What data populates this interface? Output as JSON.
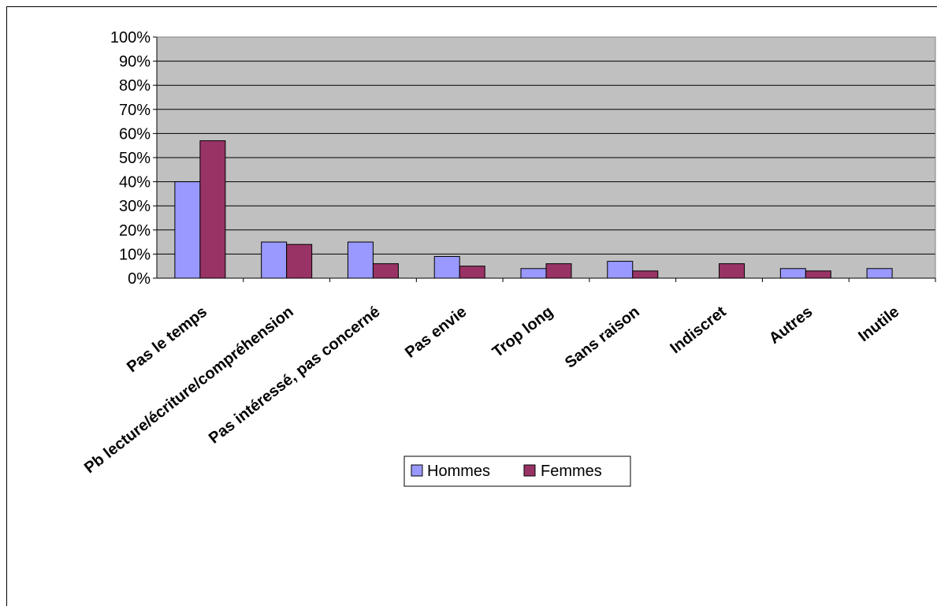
{
  "chart_data": {
    "type": "bar",
    "categories": [
      "Pas le temps",
      "Pb lecture/écriture/compréhension",
      "Pas intéressé, pas concerné",
      "Pas envie",
      "Trop long",
      "Sans raison",
      "Indiscret",
      "Autres",
      "Inutile"
    ],
    "series": [
      {
        "name": "Hommes",
        "values": [
          40,
          15,
          15,
          9,
          4,
          7,
          0,
          4,
          4
        ],
        "color": "#9999ff"
      },
      {
        "name": "Femmes",
        "values": [
          57,
          14,
          6,
          5,
          6,
          3,
          6,
          3,
          0
        ],
        "color": "#993366"
      }
    ],
    "ylim": [
      0,
      100
    ],
    "yticks": [
      "0%",
      "10%",
      "20%",
      "30%",
      "40%",
      "50%",
      "60%",
      "70%",
      "80%",
      "90%",
      "100%"
    ],
    "grid": true,
    "plot_background": "#c0c0c0",
    "legend_position": "bottom"
  }
}
